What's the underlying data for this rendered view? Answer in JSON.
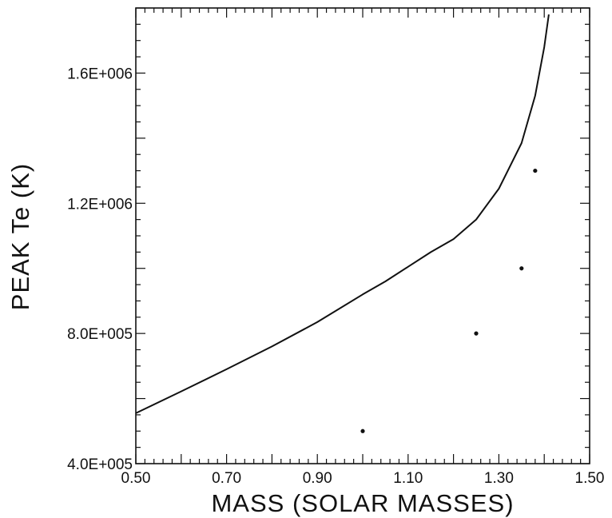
{
  "chart_data": {
    "type": "line",
    "title": "",
    "xlabel": "MASS (SOLAR MASSES)",
    "ylabel": "PEAK Te (K)",
    "xlim": [
      0.5,
      1.5
    ],
    "ylim": [
      400000,
      1800000
    ],
    "x_ticks": [
      0.5,
      0.7,
      0.9,
      1.1,
      1.3,
      1.5
    ],
    "x_tick_labels": [
      "0.50",
      "0.70",
      "0.90",
      "1.10",
      "1.30",
      "1.50"
    ],
    "y_ticks": [
      400000,
      800000,
      1200000,
      1600000
    ],
    "y_tick_labels": [
      "4.0E+005",
      "8.0E+005",
      "1.2E+006",
      "1.6E+006"
    ],
    "grid": false,
    "series": [
      {
        "kind": "line",
        "color": "#111111",
        "x": [
          0.5,
          0.6,
          0.7,
          0.8,
          0.9,
          1.0,
          1.05,
          1.1,
          1.15,
          1.2,
          1.25,
          1.3,
          1.35,
          1.38,
          1.4,
          1.41
        ],
        "y": [
          555000,
          622000,
          690000,
          760000,
          835000,
          920000,
          960000,
          1005000,
          1050000,
          1090000,
          1150000,
          1245000,
          1385000,
          1530000,
          1680000,
          1780000
        ]
      },
      {
        "kind": "scatter",
        "color": "#111111",
        "x": [
          1.0,
          1.25,
          1.35,
          1.38
        ],
        "y": [
          500000,
          800000,
          1000000,
          1300000
        ]
      }
    ]
  }
}
